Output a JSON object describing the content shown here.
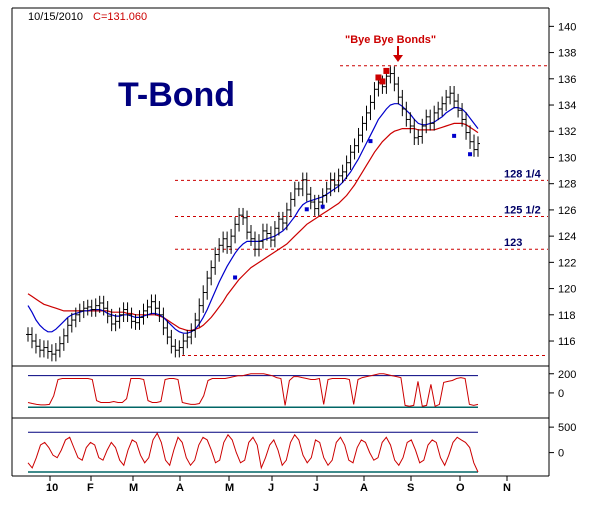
{
  "header": {
    "date": "10/15/2010",
    "close_label": "C=131.060"
  },
  "title": "T-Bond",
  "annotation": "\"Bye Bye Bonds\"",
  "colors": {
    "price": "#000000",
    "ma_short": "#0000cc",
    "ma_long": "#cc0000",
    "level_line": "#cc0000",
    "marker": "#0000cc",
    "annotation": "#cc0000",
    "title": "#00007f",
    "level_label": "#000066",
    "osc_line": "#cc0000",
    "osc_top": "#00007f",
    "osc_bottom": "#006666"
  },
  "chart_data": {
    "type": "line",
    "x_ticks": [
      "10",
      "F",
      "M",
      "A",
      "M",
      "J",
      "J",
      "A",
      "S",
      "O",
      "N"
    ],
    "y_ticks": [
      116,
      118,
      120,
      122,
      124,
      126,
      128,
      130,
      132,
      134,
      136,
      138,
      140
    ],
    "ylim": [
      114.4,
      141.4
    ],
    "levels": [
      {
        "value": 137.0,
        "label": ""
      },
      {
        "value": 128.25,
        "label": "128 1/4"
      },
      {
        "value": 125.5,
        "label": "125 1/2"
      },
      {
        "value": 123.0,
        "label": "123"
      },
      {
        "value": 114.9,
        "label": ""
      }
    ],
    "price_close": [
      116.5,
      116.0,
      115.6,
      115.3,
      115.5,
      115.2,
      115.0,
      115.3,
      115.8,
      116.4,
      117.2,
      117.6,
      118.0,
      118.3,
      118.5,
      118.6,
      118.4,
      118.7,
      118.9,
      118.5,
      117.9,
      117.3,
      117.5,
      118.0,
      118.4,
      118.0,
      117.5,
      117.4,
      117.8,
      118.3,
      118.6,
      119.0,
      118.5,
      118.0,
      117.0,
      116.3,
      115.6,
      115.3,
      115.5,
      116.0,
      116.3,
      116.8,
      117.6,
      118.7,
      119.7,
      120.8,
      121.6,
      122.6,
      123.3,
      123.8,
      123.2,
      124.0,
      124.9,
      125.6,
      125.4,
      124.3,
      123.8,
      123.0,
      123.6,
      124.4,
      124.2,
      123.7,
      124.6,
      125.3,
      125.0,
      126.0,
      126.8,
      127.6,
      127.6,
      128.3,
      127.2,
      126.6,
      126.1,
      126.6,
      127.1,
      127.6,
      128.3,
      127.9,
      128.6,
      128.9,
      129.6,
      130.4,
      130.9,
      131.7,
      132.6,
      133.4,
      134.2,
      135.2,
      135.7,
      135.4,
      136.2,
      136.4,
      135.6,
      134.6,
      133.7,
      132.9,
      132.4,
      131.5,
      131.6,
      132.4,
      133.1,
      132.6,
      133.4,
      133.7,
      134.1,
      134.6,
      134.9,
      134.3,
      133.6,
      132.9,
      131.9,
      131.2,
      130.6,
      131.06
    ],
    "ma_short": [
      118.7,
      118.2,
      117.6,
      117.2,
      116.9,
      116.7,
      116.7,
      116.9,
      117.2,
      117.5,
      117.8,
      118.0,
      118.1,
      118.2,
      118.3,
      118.3,
      118.4,
      118.4,
      118.4,
      118.3,
      118.1,
      118.0,
      117.9,
      117.9,
      118.0,
      118.0,
      117.9,
      117.8,
      117.8,
      117.9,
      118.0,
      118.1,
      118.1,
      118.0,
      117.8,
      117.5,
      117.2,
      116.9,
      116.7,
      116.6,
      116.6,
      116.7,
      116.9,
      117.3,
      117.8,
      118.4,
      119.1,
      119.8,
      120.5,
      121.1,
      121.7,
      122.2,
      122.7,
      123.1,
      123.4,
      123.6,
      123.6,
      123.6,
      123.6,
      123.7,
      123.8,
      123.9,
      124.0,
      124.2,
      124.4,
      124.7,
      125.1,
      125.5,
      126.0,
      126.4,
      126.6,
      126.7,
      126.8,
      126.9,
      127.0,
      127.2,
      127.4,
      127.6,
      127.8,
      128.1,
      128.5,
      128.9,
      129.4,
      129.9,
      130.5,
      131.1,
      131.7,
      132.3,
      132.9,
      133.3,
      133.7,
      134.0,
      134.1,
      134.1,
      133.9,
      133.6,
      133.3,
      132.9,
      132.6,
      132.5,
      132.5,
      132.6,
      132.7,
      132.9,
      133.1,
      133.4,
      133.6,
      133.8,
      133.8,
      133.7,
      133.4,
      133.0,
      132.6,
      132.2
    ],
    "ma_long": [
      119.6,
      119.4,
      119.2,
      119.0,
      118.8,
      118.7,
      118.6,
      118.5,
      118.4,
      118.3,
      118.3,
      118.3,
      118.3,
      118.3,
      118.3,
      118.3,
      118.3,
      118.3,
      118.3,
      118.3,
      118.3,
      118.2,
      118.2,
      118.2,
      118.2,
      118.1,
      118.1,
      118.0,
      118.0,
      118.0,
      118.0,
      118.0,
      118.0,
      117.9,
      117.8,
      117.6,
      117.4,
      117.2,
      117.0,
      116.9,
      116.8,
      116.8,
      116.9,
      117.0,
      117.2,
      117.5,
      117.8,
      118.2,
      118.6,
      119.0,
      119.5,
      119.9,
      120.3,
      120.7,
      121.0,
      121.3,
      121.6,
      121.8,
      122.0,
      122.2,
      122.4,
      122.6,
      122.8,
      123.0,
      123.2,
      123.4,
      123.7,
      124.0,
      124.3,
      124.6,
      124.9,
      125.1,
      125.3,
      125.5,
      125.7,
      125.9,
      126.1,
      126.3,
      126.5,
      126.8,
      127.1,
      127.5,
      127.9,
      128.4,
      128.9,
      129.4,
      129.9,
      130.4,
      130.8,
      131.2,
      131.5,
      131.8,
      132.0,
      132.1,
      132.2,
      132.2,
      132.2,
      132.2,
      132.1,
      132.1,
      132.1,
      132.1,
      132.1,
      132.2,
      132.3,
      132.4,
      132.5,
      132.6,
      132.6,
      132.6,
      132.5,
      132.3,
      132.1,
      131.9
    ],
    "markers": [
      {
        "index": 70,
        "value": 126.2
      },
      {
        "index": 74,
        "value": 126.4
      },
      {
        "index": 86,
        "value": 131.4
      },
      {
        "index": 107,
        "value": 131.8
      },
      {
        "index": 111,
        "value": 130.4
      },
      {
        "index": 52,
        "value": 121.0
      }
    ],
    "osc1": {
      "y_ticks": [
        200,
        0
      ],
      "top_line": 180,
      "bottom_line": -150,
      "values": [
        -100,
        -110,
        -120,
        -125,
        -125,
        -120,
        -30,
        140,
        150,
        150,
        150,
        150,
        150,
        150,
        150,
        140,
        -80,
        -100,
        -100,
        -100,
        -90,
        -100,
        -100,
        -60,
        150,
        150,
        150,
        140,
        -80,
        -100,
        -100,
        -90,
        140,
        150,
        150,
        140,
        -100,
        -110,
        -120,
        -120,
        -110,
        -30,
        130,
        150,
        150,
        150,
        150,
        160,
        170,
        180,
        180,
        190,
        200,
        200,
        200,
        200,
        190,
        180,
        160,
        150,
        -130,
        130,
        170,
        170,
        160,
        150,
        140,
        140,
        150,
        -120,
        140,
        150,
        150,
        150,
        150,
        140,
        -120,
        140,
        160,
        170,
        180,
        190,
        200,
        200,
        190,
        180,
        170,
        160,
        -130,
        -140,
        -130,
        120,
        -140,
        -130,
        90,
        -140,
        -120,
        110,
        120,
        130,
        150,
        160,
        150,
        -120,
        -130,
        -120
      ]
    },
    "osc2": {
      "y_ticks": [
        500,
        0
      ],
      "top_line": 400,
      "bottom_line": -380,
      "values": [
        -200,
        -300,
        -100,
        150,
        200,
        100,
        -50,
        -100,
        50,
        250,
        300,
        100,
        -100,
        -150,
        100,
        200,
        150,
        -100,
        -150,
        50,
        200,
        100,
        -150,
        -250,
        50,
        250,
        200,
        -50,
        -200,
        -100,
        250,
        380,
        200,
        -150,
        -250,
        50,
        300,
        200,
        -100,
        -250,
        -150,
        150,
        300,
        250,
        50,
        -200,
        -150,
        200,
        350,
        250,
        0,
        -200,
        -150,
        200,
        300,
        150,
        -300,
        -100,
        150,
        250,
        50,
        -250,
        -150,
        200,
        350,
        250,
        -50,
        -200,
        -100,
        250,
        200,
        -100,
        -250,
        -150,
        200,
        300,
        150,
        -150,
        -200,
        100,
        250,
        200,
        0,
        -150,
        -100,
        200,
        300,
        150,
        -150,
        -250,
        -100,
        200,
        250,
        50,
        -200,
        -150,
        150,
        250,
        200,
        -100,
        -250,
        -50,
        200,
        300,
        250,
        200,
        100,
        -200,
        -380
      ]
    }
  }
}
